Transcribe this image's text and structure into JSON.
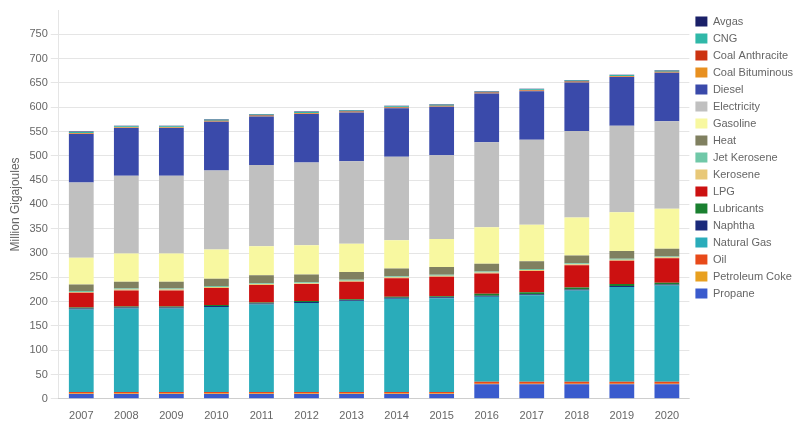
{
  "chart_data": {
    "type": "bar",
    "stacked": true,
    "ylabel": "Million Gigajoules",
    "categories": [
      "2007",
      "2008",
      "2009",
      "2010",
      "2011",
      "2012",
      "2013",
      "2014",
      "2015",
      "2016",
      "2017",
      "2018",
      "2019",
      "2020"
    ],
    "series": [
      {
        "name": "Propane",
        "color": "#3a5bcd",
        "values": [
          10,
          10,
          10,
          10,
          10,
          10,
          10,
          10,
          10,
          30,
          30,
          30,
          30,
          30
        ]
      },
      {
        "name": "Petroleum Coke",
        "color": "#e8a020",
        "values": [
          1,
          1,
          1,
          1,
          1,
          1,
          1,
          1,
          1,
          1,
          1,
          1,
          1,
          1
        ]
      },
      {
        "name": "Oil",
        "color": "#e84a1a",
        "values": [
          3,
          3,
          3,
          3,
          3,
          3,
          3,
          3,
          3,
          4,
          4,
          4,
          4,
          4
        ]
      },
      {
        "name": "Natural Gas",
        "color": "#2aacba",
        "values": [
          170,
          172,
          172,
          175,
          180,
          183,
          187,
          192,
          193,
          175,
          178,
          188,
          195,
          198
        ]
      },
      {
        "name": "Naphtha",
        "color": "#1a2a7a",
        "values": [
          2,
          2,
          2,
          2,
          2,
          2,
          2,
          2,
          2,
          2,
          2,
          2,
          2,
          2
        ]
      },
      {
        "name": "Lubricants",
        "color": "#1a8030",
        "values": [
          2,
          2,
          2,
          2,
          2,
          2,
          2,
          2,
          2,
          4,
          4,
          4,
          4,
          4
        ]
      },
      {
        "name": "LPG",
        "color": "#cc1111",
        "values": [
          30,
          33,
          33,
          35,
          36,
          35,
          36,
          38,
          40,
          42,
          44,
          46,
          48,
          50
        ]
      },
      {
        "name": "Kerosene",
        "color": "#e8c878",
        "values": [
          2,
          2,
          2,
          2,
          2,
          2,
          2,
          2,
          2,
          2,
          2,
          2,
          2,
          2
        ]
      },
      {
        "name": "Jet Kerosene",
        "color": "#70c8a8",
        "values": [
          2,
          2,
          2,
          2,
          2,
          2,
          2,
          2,
          2,
          2,
          2,
          2,
          2,
          2
        ]
      },
      {
        "name": "Heat",
        "color": "#808060",
        "values": [
          13,
          14,
          14,
          15,
          16,
          16,
          16,
          16,
          16,
          16,
          16,
          16,
          16,
          16
        ]
      },
      {
        "name": "Gasoline",
        "color": "#f8f8a0",
        "values": [
          55,
          58,
          58,
          60,
          60,
          60,
          58,
          58,
          58,
          75,
          75,
          78,
          80,
          82
        ]
      },
      {
        "name": "Electricity",
        "color": "#c0c0c0",
        "values": [
          155,
          160,
          160,
          163,
          167,
          170,
          170,
          172,
          172,
          175,
          175,
          178,
          178,
          180
        ]
      },
      {
        "name": "Diesel",
        "color": "#3a4aaa",
        "values": [
          100,
          98,
          98,
          100,
          100,
          100,
          100,
          100,
          100,
          100,
          100,
          100,
          100,
          100
        ]
      },
      {
        "name": "Coal Bituminous",
        "color": "#e89020",
        "values": [
          1,
          1,
          1,
          1,
          1,
          1,
          1,
          1,
          1,
          1,
          1,
          1,
          1,
          1
        ]
      },
      {
        "name": "Coal Anthracite",
        "color": "#cc3311",
        "values": [
          1,
          1,
          1,
          1,
          1,
          1,
          1,
          1,
          1,
          1,
          1,
          1,
          1,
          1
        ]
      },
      {
        "name": "CNG",
        "color": "#30b8a8",
        "values": [
          2,
          2,
          2,
          2,
          2,
          2,
          2,
          2,
          2,
          2,
          2,
          2,
          2,
          2
        ]
      },
      {
        "name": "Avgas",
        "color": "#1a2068",
        "values": [
          1,
          1,
          1,
          1,
          1,
          1,
          1,
          1,
          1,
          1,
          1,
          1,
          1,
          1
        ]
      }
    ],
    "ylim": [
      0,
      800
    ],
    "yticks": [
      0,
      50,
      100,
      150,
      200,
      250,
      300,
      350,
      400,
      450,
      500,
      550,
      600,
      650,
      700,
      750
    ],
    "grid": true,
    "legend": "right"
  }
}
